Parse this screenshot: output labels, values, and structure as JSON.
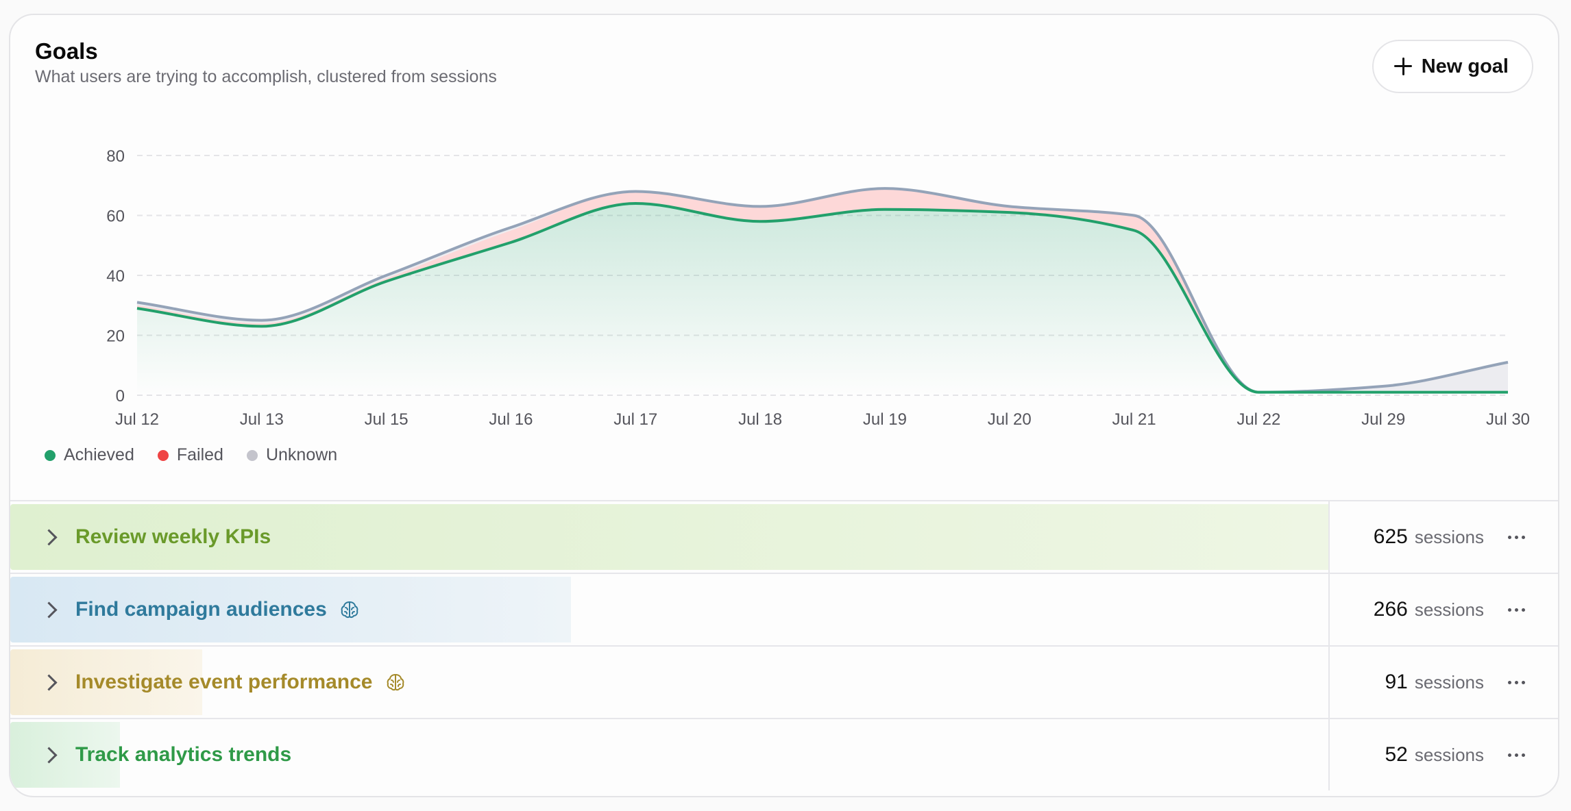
{
  "header": {
    "title": "Goals",
    "subtitle": "What users are trying to accomplish, clustered from sessions",
    "new_goal_label": "New goal"
  },
  "colors": {
    "achieved": "#22a06b",
    "failed": "#ef4444",
    "unknown": "#c4c4cc",
    "failed_fill": "#fdd8d8",
    "unknown_line": "#94a3b8"
  },
  "legend": [
    {
      "label": "Achieved",
      "color": "#22a06b"
    },
    {
      "label": "Failed",
      "color": "#ef4444"
    },
    {
      "label": "Unknown",
      "color": "#c4c4cc"
    }
  ],
  "chart_data": {
    "type": "area",
    "x": [
      "Jul 12",
      "Jul 13",
      "Jul 15",
      "Jul 16",
      "Jul 17",
      "Jul 18",
      "Jul 19",
      "Jul 20",
      "Jul 21",
      "Jul 22",
      "Jul 29",
      "Jul 30"
    ],
    "ylim": [
      0,
      80
    ],
    "yticks": [
      0,
      20,
      40,
      60,
      80
    ],
    "grid": true,
    "legend_position": "bottom-left",
    "series": [
      {
        "name": "Achieved",
        "values": [
          29,
          23,
          38,
          51,
          64,
          58,
          62,
          61,
          55,
          1,
          1,
          1
        ]
      },
      {
        "name": "Failed",
        "values": [
          1,
          1,
          1,
          4,
          4,
          5,
          7,
          2,
          5,
          0,
          0,
          0
        ]
      },
      {
        "name": "Unknown",
        "values": [
          1,
          1,
          1,
          1,
          0,
          0,
          0,
          0,
          0,
          0,
          2,
          10
        ]
      }
    ]
  },
  "goals": [
    {
      "label": "Review weekly KPIs",
      "count": "625",
      "unit": "sessions",
      "share": 1.0,
      "color": "#6a9a2a",
      "bar": "#dff0d0",
      "bar_end": "#eef6e4",
      "brain": false
    },
    {
      "label": "Find campaign audiences",
      "count": "266",
      "unit": "sessions",
      "share": 0.4256,
      "color": "#2f7a9c",
      "bar": "#d8e8f3",
      "bar_end": "#eef4f8",
      "brain": true
    },
    {
      "label": "Investigate event performance",
      "count": "91",
      "unit": "sessions",
      "share": 0.1456,
      "color": "#a58a2a",
      "bar": "#f5ecd6",
      "bar_end": "#faf5ea",
      "brain": true
    },
    {
      "label": "Track analytics trends",
      "count": "52",
      "unit": "sessions",
      "share": 0.0832,
      "color": "#2f9a48",
      "bar": "#d9f0dc",
      "bar_end": "#ecf7ee",
      "brain": false
    }
  ]
}
